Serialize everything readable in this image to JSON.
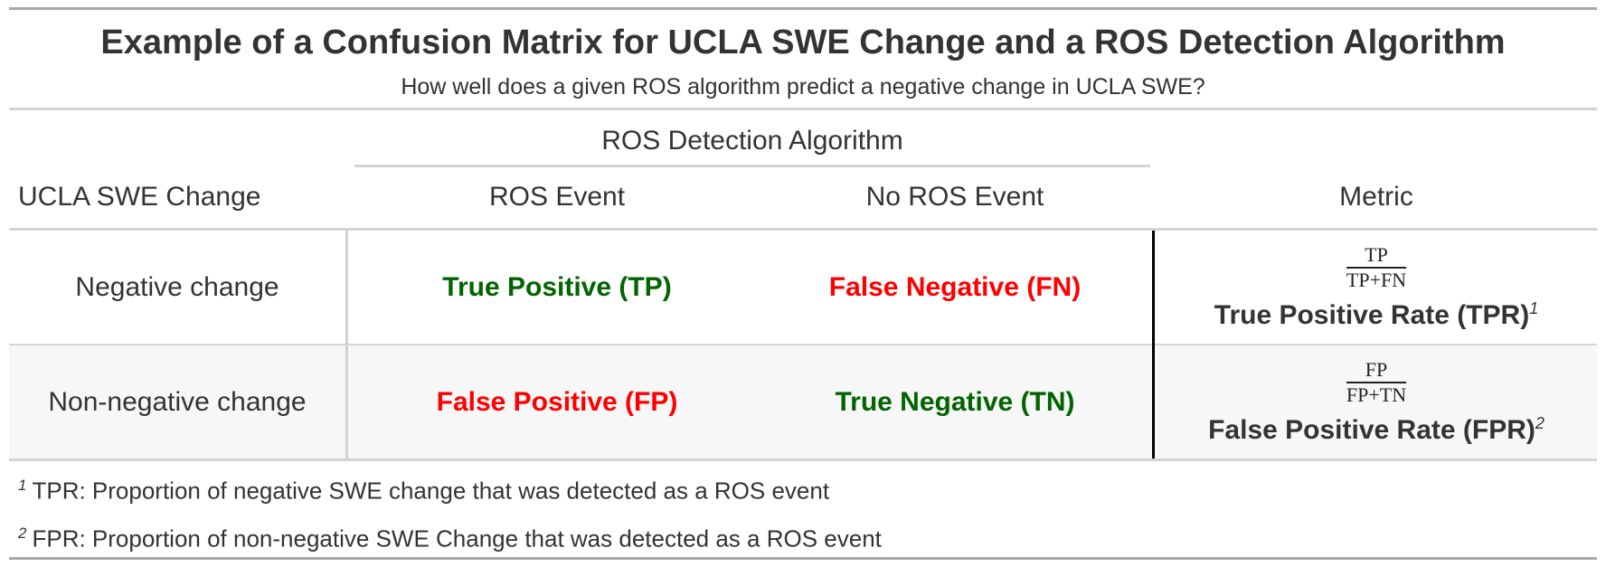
{
  "title": "Example of a Confusion Matrix for UCLA SWE Change and a ROS Detection Algorithm",
  "subtitle": "How well does a given ROS algorithm predict a negative change in UCLA SWE?",
  "spanner_label": "ROS Detection Algorithm",
  "columns": {
    "stub": "UCLA SWE Change",
    "ros_event": "ROS Event",
    "no_ros_event": "No ROS Event",
    "metric": "Metric"
  },
  "rows": [
    {
      "label": "Negative change",
      "ros_event": "True Positive (TP)",
      "no_ros_event": "False Negative (FN)",
      "metric_numerator": "TP",
      "metric_denominator": "TP+FN",
      "metric_label": "True Positive Rate (TPR)",
      "metric_footnote": "1"
    },
    {
      "label": "Non-negative change",
      "ros_event": "False Positive (FP)",
      "no_ros_event": "True Negative (TN)",
      "metric_numerator": "FP",
      "metric_denominator": "FP+TN",
      "metric_label": "False Positive Rate (FPR)",
      "metric_footnote": "2"
    }
  ],
  "footnotes": [
    {
      "mark": "1",
      "text": "TPR: Proportion of negative SWE change that was detected as a ROS event"
    },
    {
      "mark": "2",
      "text": "FPR: Proportion of non-negative SWE Change that was detected as a ROS event"
    }
  ],
  "colors": {
    "positive_green": "#006400",
    "negative_red": "#ff0000"
  }
}
